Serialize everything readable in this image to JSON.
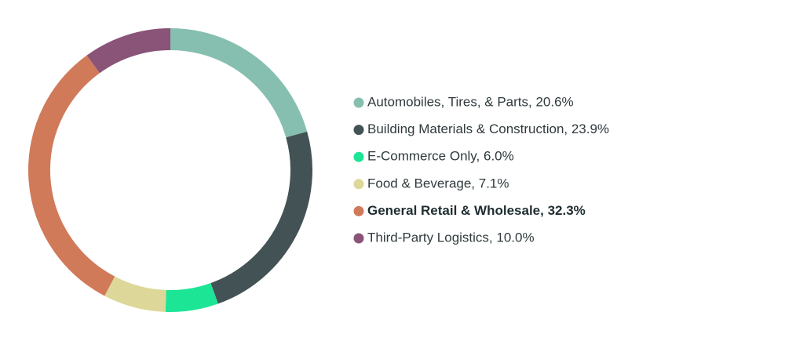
{
  "chart_data": {
    "type": "donut",
    "categories": [
      "Automobiles, Tires, & Parts, 20.6%",
      "Building Materials & Construction, 23.9%",
      "E-Commerce Only, 6.0%",
      "Food & Beverage, 7.1%",
      "General Retail & Wholesale, 32.3%",
      "Third-Party Logistics, 10.0%"
    ],
    "values": [
      20.6,
      23.9,
      6.0,
      7.1,
      32.3,
      10.0
    ],
    "colors": [
      "#86bfb0",
      "#435254",
      "#1de596",
      "#ddd899",
      "#d07a5a",
      "#8a5378"
    ],
    "highlight": 4
  }
}
